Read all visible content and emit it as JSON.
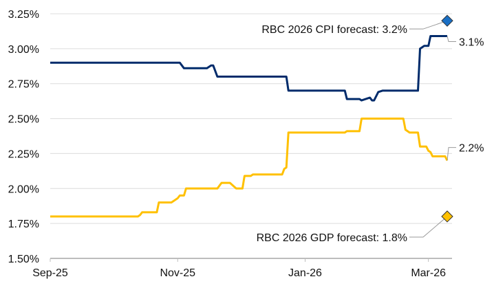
{
  "chart_data": {
    "type": "line",
    "title": "",
    "xlabel": "",
    "ylabel": "",
    "ylim": [
      1.5,
      3.25
    ],
    "xlim": [
      "2025-09-01",
      "2026-03-10"
    ],
    "grid": true,
    "y_ticks": [
      "1.50%",
      "1.75%",
      "2.00%",
      "2.25%",
      "2.50%",
      "2.75%",
      "3.00%",
      "3.25%"
    ],
    "y_tick_values": [
      1.5,
      1.75,
      2.0,
      2.25,
      2.5,
      2.75,
      3.0,
      3.25
    ],
    "x_ticks": [
      {
        "label": "Sep-25",
        "date": "2025-09-01"
      },
      {
        "label": "Nov-25",
        "date": "2025-11-01"
      },
      {
        "label": "Jan-26",
        "date": "2026-01-01"
      },
      {
        "label": "Mar-26",
        "date": "2026-03-01"
      }
    ],
    "series": [
      {
        "key": "cpi",
        "color": "#002b6b",
        "end_label": "3.1%",
        "points": [
          [
            "2025-09-01",
            2.9
          ],
          [
            "2025-11-02",
            2.9
          ],
          [
            "2025-11-04",
            2.86
          ],
          [
            "2025-11-15",
            2.86
          ],
          [
            "2025-11-17",
            2.88
          ],
          [
            "2025-11-18",
            2.88
          ],
          [
            "2025-11-20",
            2.8
          ],
          [
            "2025-12-23",
            2.8
          ],
          [
            "2025-12-24",
            2.7
          ],
          [
            "2026-01-20",
            2.7
          ],
          [
            "2026-01-21",
            2.64
          ],
          [
            "2026-01-27",
            2.64
          ],
          [
            "2026-01-28",
            2.63
          ],
          [
            "2026-02-01",
            2.65
          ],
          [
            "2026-02-02",
            2.63
          ],
          [
            "2026-02-03",
            2.63
          ],
          [
            "2026-02-05",
            2.69
          ],
          [
            "2026-02-07",
            2.7
          ],
          [
            "2026-02-24",
            2.7
          ],
          [
            "2026-02-25",
            3.0
          ],
          [
            "2026-02-27",
            3.02
          ],
          [
            "2026-03-01",
            3.02
          ],
          [
            "2026-03-02",
            3.09
          ],
          [
            "2026-03-10",
            3.09
          ]
        ]
      },
      {
        "key": "gdp",
        "color": "#ffc000",
        "end_label": "2.2%",
        "points": [
          [
            "2025-09-01",
            1.8
          ],
          [
            "2025-10-13",
            1.8
          ],
          [
            "2025-10-14",
            1.81
          ],
          [
            "2025-10-15",
            1.83
          ],
          [
            "2025-10-22",
            1.83
          ],
          [
            "2025-10-23",
            1.9
          ],
          [
            "2025-10-29",
            1.9
          ],
          [
            "2025-11-01",
            1.93
          ],
          [
            "2025-11-02",
            1.95
          ],
          [
            "2025-11-04",
            1.95
          ],
          [
            "2025-11-05",
            2.0
          ],
          [
            "2025-11-20",
            2.0
          ],
          [
            "2025-11-22",
            2.04
          ],
          [
            "2025-11-26",
            2.04
          ],
          [
            "2025-11-29",
            2.0
          ],
          [
            "2025-12-02",
            2.0
          ],
          [
            "2025-12-03",
            2.09
          ],
          [
            "2025-12-06",
            2.09
          ],
          [
            "2025-12-07",
            2.1
          ],
          [
            "2025-12-21",
            2.1
          ],
          [
            "2025-12-22",
            2.14
          ],
          [
            "2025-12-23",
            2.15
          ],
          [
            "2025-12-24",
            2.4
          ],
          [
            "2026-01-20",
            2.4
          ],
          [
            "2026-01-21",
            2.41
          ],
          [
            "2026-01-27",
            2.41
          ],
          [
            "2026-01-28",
            2.5
          ],
          [
            "2026-02-17",
            2.5
          ],
          [
            "2026-02-18",
            2.42
          ],
          [
            "2026-02-20",
            2.4
          ],
          [
            "2026-02-24",
            2.4
          ],
          [
            "2026-02-25",
            2.3
          ],
          [
            "2026-02-28",
            2.3
          ],
          [
            "2026-03-01",
            2.27
          ],
          [
            "2026-03-02",
            2.26
          ],
          [
            "2026-03-03",
            2.23
          ],
          [
            "2026-03-09",
            2.23
          ],
          [
            "2026-03-10",
            2.2
          ]
        ]
      }
    ],
    "annotations": [
      {
        "key": "cpi_forecast",
        "text": "RBC 2026 CPI forecast: 3.2%",
        "date": "2026-03-10",
        "value": 3.2,
        "marker": "diamond",
        "color": "#1a6fc4"
      },
      {
        "key": "gdp_forecast",
        "text": "RBC 2026 GDP forecast: 1.8%",
        "date": "2026-03-10",
        "value": 1.8,
        "marker": "diamond",
        "color": "#ffc000"
      }
    ]
  }
}
